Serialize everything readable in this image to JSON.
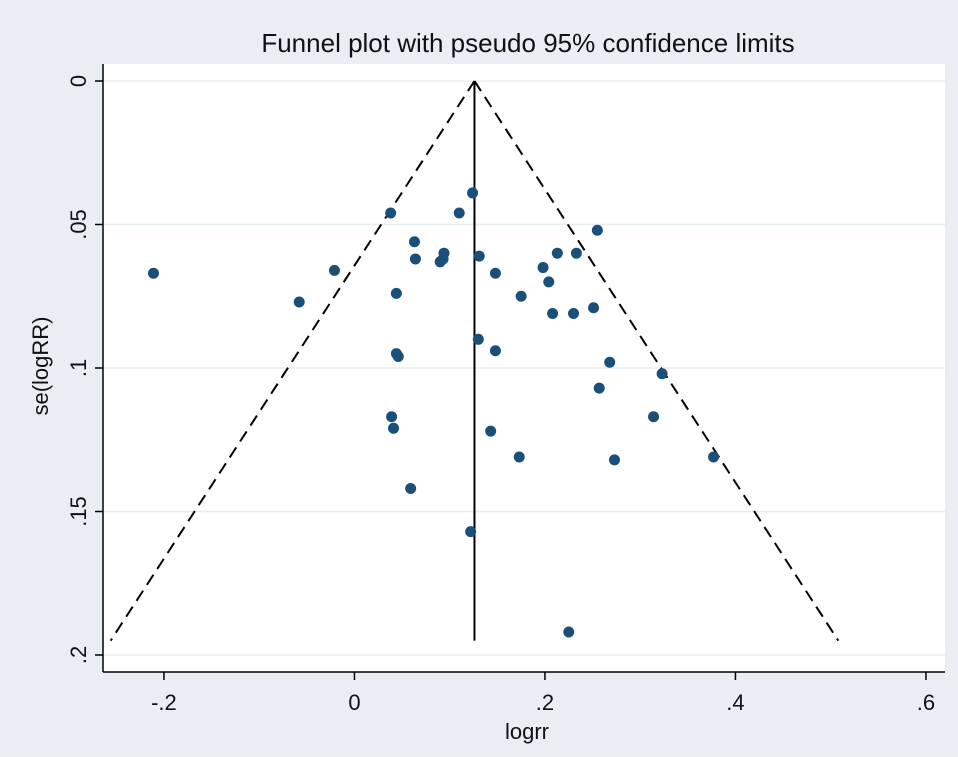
{
  "chart_data": {
    "type": "scatter",
    "title": "Funnel plot with pseudo 95% confidence limits",
    "xlabel": "logrr",
    "ylabel": "se(logRR)",
    "xlim": [
      -0.264,
      0.62
    ],
    "ylim": [
      0,
      0.207
    ],
    "y_reversed": true,
    "grid": true,
    "x_ticks": [
      {
        "value": -0.2,
        "label": "-.2"
      },
      {
        "value": 0,
        "label": "0"
      },
      {
        "value": 0.2,
        "label": ".2"
      },
      {
        "value": 0.4,
        "label": ".4"
      },
      {
        "value": 0.6,
        "label": ".6"
      }
    ],
    "y_ticks": [
      {
        "value": 0,
        "label": "0"
      },
      {
        "value": 0.05,
        "label": ".05"
      },
      {
        "value": 0.1,
        "label": ".1"
      },
      {
        "value": 0.15,
        "label": ".15"
      },
      {
        "value": 0.2,
        "label": ".2"
      }
    ],
    "pooled_estimate": 0.126,
    "funnel": {
      "apex": [
        0.126,
        0
      ],
      "bottom_se": 0.195,
      "bottom_left_x": -0.256,
      "bottom_right_x": 0.508
    },
    "points": [
      {
        "x": -0.211,
        "y": 0.067
      },
      {
        "x": -0.058,
        "y": 0.077
      },
      {
        "x": -0.021,
        "y": 0.066
      },
      {
        "x": 0.038,
        "y": 0.046
      },
      {
        "x": 0.044,
        "y": 0.074
      },
      {
        "x": 0.044,
        "y": 0.095
      },
      {
        "x": 0.046,
        "y": 0.096
      },
      {
        "x": 0.039,
        "y": 0.117
      },
      {
        "x": 0.041,
        "y": 0.121
      },
      {
        "x": 0.059,
        "y": 0.142
      },
      {
        "x": 0.063,
        "y": 0.056
      },
      {
        "x": 0.064,
        "y": 0.062
      },
      {
        "x": 0.09,
        "y": 0.063
      },
      {
        "x": 0.093,
        "y": 0.062
      },
      {
        "x": 0.094,
        "y": 0.06
      },
      {
        "x": 0.11,
        "y": 0.046
      },
      {
        "x": 0.124,
        "y": 0.039
      },
      {
        "x": 0.131,
        "y": 0.061
      },
      {
        "x": 0.13,
        "y": 0.09
      },
      {
        "x": 0.122,
        "y": 0.157
      },
      {
        "x": 0.148,
        "y": 0.067
      },
      {
        "x": 0.148,
        "y": 0.094
      },
      {
        "x": 0.143,
        "y": 0.122
      },
      {
        "x": 0.175,
        "y": 0.075
      },
      {
        "x": 0.173,
        "y": 0.131
      },
      {
        "x": 0.198,
        "y": 0.065
      },
      {
        "x": 0.204,
        "y": 0.07
      },
      {
        "x": 0.208,
        "y": 0.081
      },
      {
        "x": 0.213,
        "y": 0.06
      },
      {
        "x": 0.23,
        "y": 0.081
      },
      {
        "x": 0.233,
        "y": 0.06
      },
      {
        "x": 0.225,
        "y": 0.192
      },
      {
        "x": 0.251,
        "y": 0.079
      },
      {
        "x": 0.255,
        "y": 0.052
      },
      {
        "x": 0.257,
        "y": 0.107
      },
      {
        "x": 0.268,
        "y": 0.098
      },
      {
        "x": 0.273,
        "y": 0.132
      },
      {
        "x": 0.314,
        "y": 0.117
      },
      {
        "x": 0.323,
        "y": 0.102
      },
      {
        "x": 0.377,
        "y": 0.131
      }
    ],
    "colors": {
      "page_background": "#e8eef3",
      "plot_background": "#ffffff",
      "gridline": "#e6eef2",
      "marker": "#1a4f7a",
      "line": "#000000"
    }
  }
}
